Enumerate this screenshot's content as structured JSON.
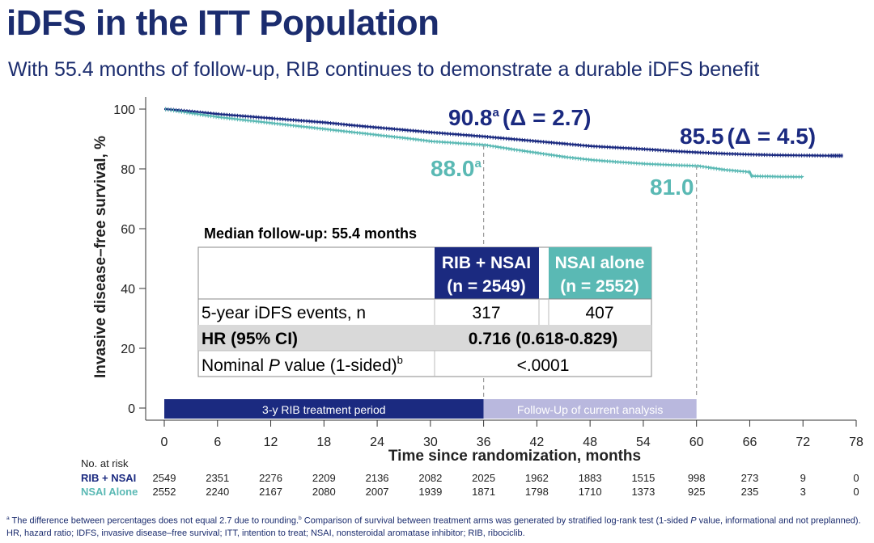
{
  "title": "iDFS in the ITT Population",
  "subtitle": "With 55.4 months of follow-up, RIB continues to demonstrate a durable iDFS benefit",
  "colors": {
    "rib": "#1b2a80",
    "nsai": "#5ab9b4",
    "dark_title": "#1b2c6e",
    "period1": "#1b2a80",
    "period2": "#b9b8de"
  },
  "chart_data": {
    "type": "line",
    "xlabel": "Time since randomization, months",
    "ylabel": "Invasive disease–free survival, %",
    "x_ticks": [
      "0",
      "6",
      "12",
      "18",
      "24",
      "30",
      "36",
      "42",
      "48",
      "54",
      "60",
      "66",
      "72",
      "78"
    ],
    "y_ticks": [
      "0",
      "20",
      "40",
      "60",
      "80",
      "100"
    ],
    "xlim": [
      0,
      78
    ],
    "ylim": [
      0,
      100
    ],
    "series": [
      {
        "name": "RIB + NSAI",
        "x": [
          0,
          3,
          6,
          9,
          12,
          15,
          18,
          21,
          24,
          27,
          30,
          33,
          36,
          39,
          42,
          45,
          48,
          51,
          54,
          57,
          60,
          63,
          66,
          69,
          72,
          75,
          76.5
        ],
        "y": [
          100,
          99.2,
          98.3,
          97.6,
          96.9,
          96.2,
          95.5,
          94.6,
          93.8,
          93.0,
          92.2,
          91.5,
          90.8,
          90.0,
          89.2,
          88.4,
          87.6,
          87.1,
          86.6,
          86.0,
          85.5,
          85.1,
          84.8,
          84.6,
          84.5,
          84.4,
          84.4
        ]
      },
      {
        "name": "NSAI Alone",
        "x": [
          0,
          3,
          6,
          9,
          12,
          15,
          18,
          21,
          24,
          27,
          30,
          33,
          36,
          39,
          42,
          45,
          48,
          51,
          54,
          57,
          60,
          63,
          66,
          66.2,
          69,
          72
        ],
        "y": [
          100,
          98.6,
          97.3,
          96.3,
          95.3,
          94.3,
          93.3,
          92.3,
          91.3,
          90.3,
          89.2,
          88.6,
          88.0,
          86.6,
          85.3,
          84.0,
          83.0,
          82.3,
          81.7,
          81.3,
          81.0,
          79.7,
          78.9,
          77.6,
          77.4,
          77.3
        ]
      }
    ],
    "annotations": {
      "rib_36": "90.8",
      "rib_36_sup": "a",
      "rib_36_delta": "(Δ = 2.7)",
      "rib_60": "85.5",
      "rib_60_delta": "(Δ = 4.5)",
      "nsai_36": "88.0",
      "nsai_36_sup": "a",
      "nsai_60": "81.0"
    },
    "vlines_x": [
      36,
      60
    ],
    "periods": [
      {
        "label": "3-y RIB treatment period",
        "start": 0,
        "end": 36
      },
      {
        "label": "Follow-Up of current analysis",
        "start": 36,
        "end": 60
      }
    ],
    "risk_table": {
      "header": "No. at risk",
      "rows": [
        {
          "label": "RIB + NSAI",
          "values": [
            "2549",
            "2351",
            "2276",
            "2209",
            "2136",
            "2082",
            "2025",
            "1962",
            "1883",
            "1515",
            "998",
            "273",
            "9",
            "0"
          ]
        },
        {
          "label": "NSAI Alone",
          "values": [
            "2552",
            "2240",
            "2167",
            "2080",
            "2007",
            "1939",
            "1871",
            "1798",
            "1710",
            "1373",
            "925",
            "235",
            "3",
            "0"
          ]
        }
      ]
    },
    "inset_table": {
      "caption": "Median follow-up: 55.4 months",
      "col1_line1": "RIB + NSAI",
      "col1_line2": "(n = 2549)",
      "col2_line1": "NSAI alone",
      "col2_line2": "(n = 2552)",
      "row1_label": "5-year iDFS events, n",
      "row1_v1": "317",
      "row1_v2": "407",
      "row2_label": "HR (95% CI)",
      "row2_value": "0.716 (0.618-0.829)",
      "row3_label_pre": "Nominal ",
      "row3_label_p": "P",
      "row3_label_post": " value (1-sided)",
      "row3_label_sup": "b",
      "row3_value": "<.0001"
    }
  },
  "footnotes": {
    "line1_sup_a": "a",
    "line1_text_a": " The difference between percentages does not equal 2.7 due to rounding.",
    "line1_sup_b": "b",
    "line1_text_b": " Comparison of survival between treatment arms was generated by stratified log-rank test (1-sided ",
    "line1_p": "P",
    "line1_text_c": " value, informational and not preplanned).",
    "line2": "HR, hazard ratio; IDFS, invasive disease–free survival; ITT, intention to treat; NSAI, nonsteroidal aromatase inhibitor; RIB, ribociclib."
  }
}
